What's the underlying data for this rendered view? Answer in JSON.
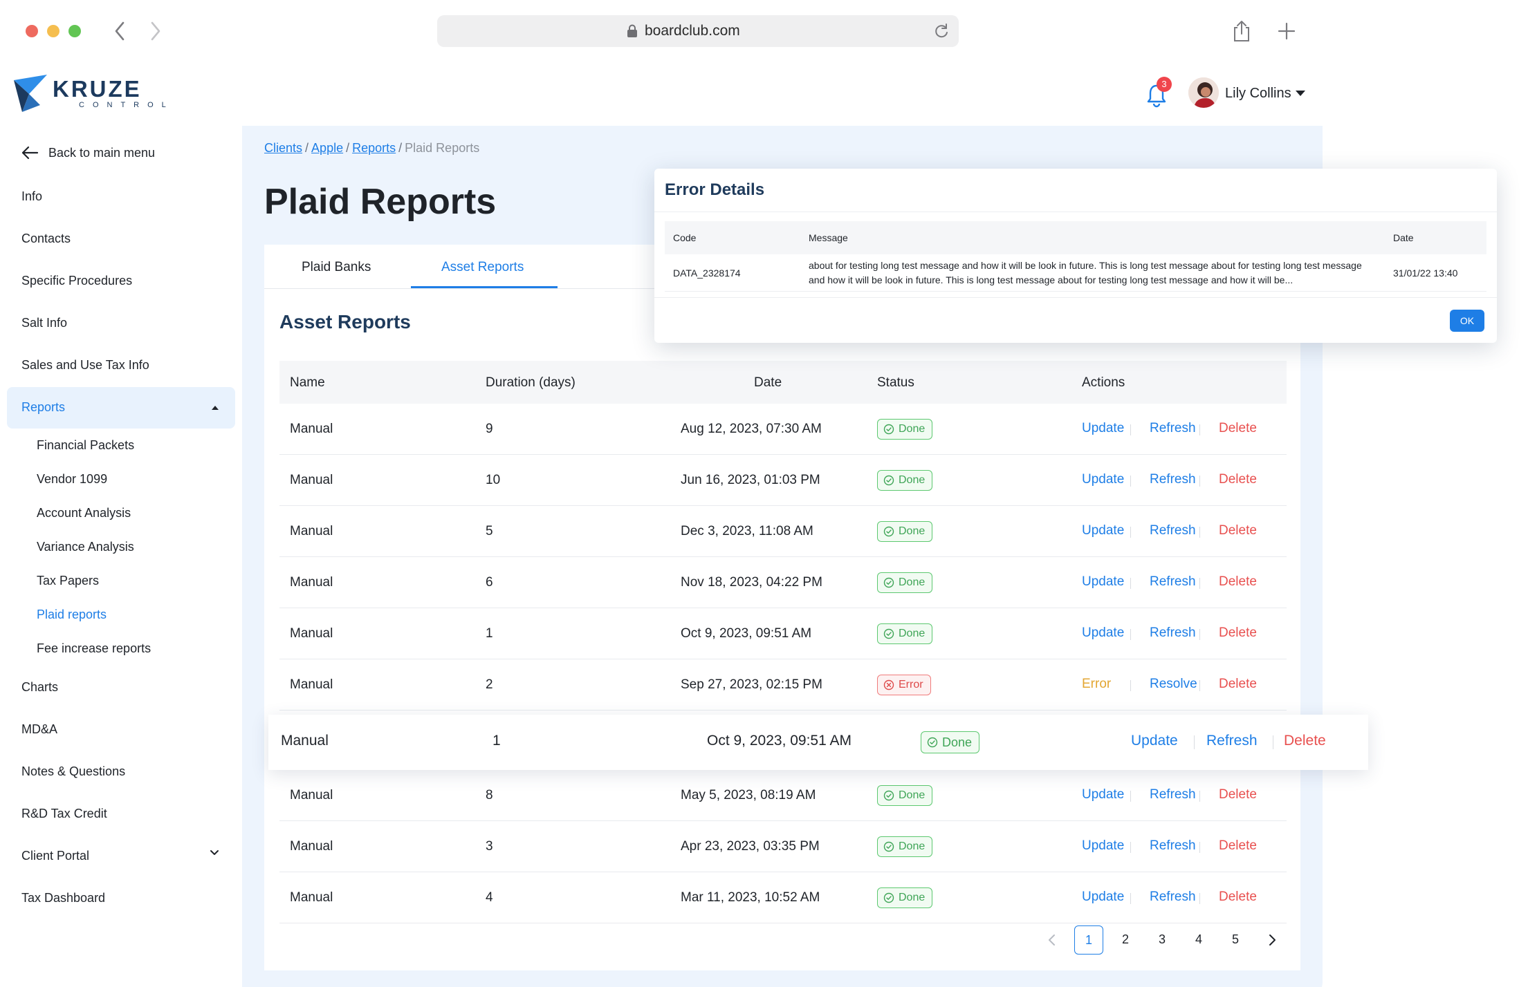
{
  "browser": {
    "url": "boardclub.com"
  },
  "logo": {
    "word": "KRUZE",
    "sub": "CONTROL",
    "brand_color": "#1c3a5e",
    "accent_color": "#2f8ee8"
  },
  "header": {
    "notification_count": "3",
    "user_name": "Lily Collins"
  },
  "sidebar": {
    "back_label": "Back to main menu",
    "items": [
      "Info",
      "Contacts",
      "Specific Procedures",
      "Salt Info",
      "Sales and Use Tax Info"
    ],
    "reports_label": "Reports",
    "report_subitems": [
      "Financial Packets",
      "Vendor 1099",
      "Account Analysis",
      "Variance Analysis",
      "Tax Papers",
      "Plaid reports",
      "Fee increase reports"
    ],
    "active_subitem": "Plaid reports",
    "items_after": [
      "Charts",
      "MD&A",
      "Notes & Questions",
      "R&D Tax Credit",
      "Client Portal",
      "Tax Dashboard"
    ]
  },
  "breadcrumb": {
    "items": [
      "Clients",
      "Apple",
      "Reports"
    ],
    "current": "Plaid Reports"
  },
  "page": {
    "title": "Plaid Reports",
    "tabs": [
      "Plaid Banks",
      "Asset Reports"
    ],
    "active_tab": "Asset Reports",
    "section_title": "Asset Reports"
  },
  "table": {
    "columns": [
      "Name",
      "Duration (days)",
      "Date",
      "Status",
      "Actions"
    ],
    "rows": [
      {
        "name": "Manual",
        "duration": "9",
        "date": "Aug 12, 2023, 07:30 AM",
        "status": "Done",
        "a1": "Update",
        "a2": "Refresh",
        "a3": "Delete"
      },
      {
        "name": "Manual",
        "duration": "10",
        "date": "Jun 16, 2023, 01:03 PM",
        "status": "Done",
        "a1": "Update",
        "a2": "Refresh",
        "a3": "Delete"
      },
      {
        "name": "Manual",
        "duration": "5",
        "date": "Dec 3, 2023, 11:08 AM",
        "status": "Done",
        "a1": "Update",
        "a2": "Refresh",
        "a3": "Delete"
      },
      {
        "name": "Manual",
        "duration": "6",
        "date": "Nov 18, 2023, 04:22 PM",
        "status": "Done",
        "a1": "Update",
        "a2": "Refresh",
        "a3": "Delete"
      },
      {
        "name": "Manual",
        "duration": "1",
        "date": "Oct 9, 2023, 09:51 AM",
        "status": "Done",
        "a1": "Update",
        "a2": "Refresh",
        "a3": "Delete"
      },
      {
        "name": "Manual",
        "duration": "2",
        "date": "Sep 27, 2023, 02:15 PM",
        "status": "Error",
        "a1": "Error",
        "a2": "Resolve",
        "a3": "Delete"
      },
      {
        "name": "Manual",
        "duration": "8",
        "date": "May 5, 2023, 08:19 AM",
        "status": "Done",
        "a1": "Update",
        "a2": "Refresh",
        "a3": "Delete"
      },
      {
        "name": "Manual",
        "duration": "3",
        "date": "Apr 23, 2023, 03:35 PM",
        "status": "Done",
        "a1": "Update",
        "a2": "Refresh",
        "a3": "Delete"
      },
      {
        "name": "Manual",
        "duration": "4",
        "date": "Mar 11, 2023, 10:52 AM",
        "status": "Done",
        "a1": "Update",
        "a2": "Refresh",
        "a3": "Delete"
      }
    ],
    "highlighted_row": {
      "name": "Manual",
      "duration": "1",
      "date": "Oct 9, 2023, 09:51 AM",
      "status": "Done",
      "a1": "Update",
      "a2": "Refresh",
      "a3": "Delete"
    }
  },
  "pagination": {
    "pages": [
      "1",
      "2",
      "3",
      "4",
      "5"
    ],
    "current": "1"
  },
  "modal": {
    "title": "Error Details",
    "columns": [
      "Code",
      "Message",
      "Date"
    ],
    "code": "DATA_2328174",
    "message": "about for testing long test message and how it will be look in future. This is long test message about for testing long test message and how it will be look in future. This is long test message about for testing long test message and how it will be...",
    "date": "31/01/22 13:40",
    "ok_label": "OK"
  },
  "colors": {
    "accent": "#1e7ee6",
    "done": "#3fa557",
    "error": "#de4a4a",
    "warning": "#e3a632",
    "main_bg": "#edf4fd"
  }
}
